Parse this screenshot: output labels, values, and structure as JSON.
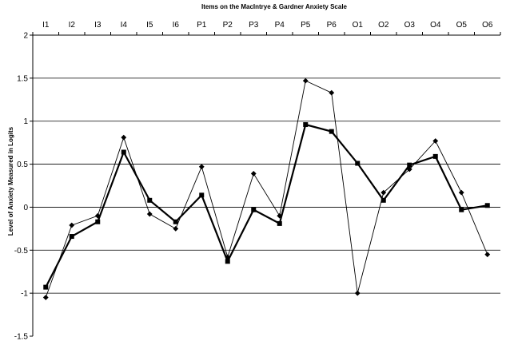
{
  "chart_data": {
    "type": "line",
    "title": "Items on the MacIntrye & Gardner Anxiety Scale",
    "xlabel": "",
    "ylabel": "Level of Anxiety Measured in Logits",
    "categories": [
      "I1",
      "I2",
      "I3",
      "I4",
      "I5",
      "I6",
      "P1",
      "P2",
      "P3",
      "P4",
      "P5",
      "P6",
      "O1",
      "O2",
      "O3",
      "O4",
      "O5",
      "O6"
    ],
    "ylim": [
      -1.5,
      2
    ],
    "yticks": [
      -1.5,
      -1,
      -0.5,
      0,
      0.5,
      1,
      1.5,
      2
    ],
    "ytick_labels": [
      "-1.5",
      "-1",
      "-0.5",
      "0",
      "0.5",
      "1",
      "1.5",
      "2"
    ],
    "xaxis_position": "top",
    "grid": "horizontal",
    "series": [
      {
        "marker": "diamond",
        "line": "thin",
        "values": [
          -1.05,
          -0.21,
          -0.1,
          0.81,
          -0.08,
          -0.25,
          0.47,
          -0.58,
          0.39,
          -0.1,
          1.47,
          1.33,
          -1.0,
          0.17,
          0.44,
          0.77,
          0.17,
          -0.55
        ]
      },
      {
        "marker": "square",
        "line": "thick",
        "values": [
          -0.93,
          -0.34,
          -0.17,
          0.64,
          0.08,
          -0.17,
          0.14,
          -0.63,
          -0.03,
          -0.19,
          0.96,
          0.88,
          0.51,
          0.08,
          0.49,
          0.59,
          -0.03,
          0.02
        ]
      }
    ],
    "colors": {
      "line": "#000000",
      "grid": "#000000",
      "background": "#ffffff"
    }
  }
}
